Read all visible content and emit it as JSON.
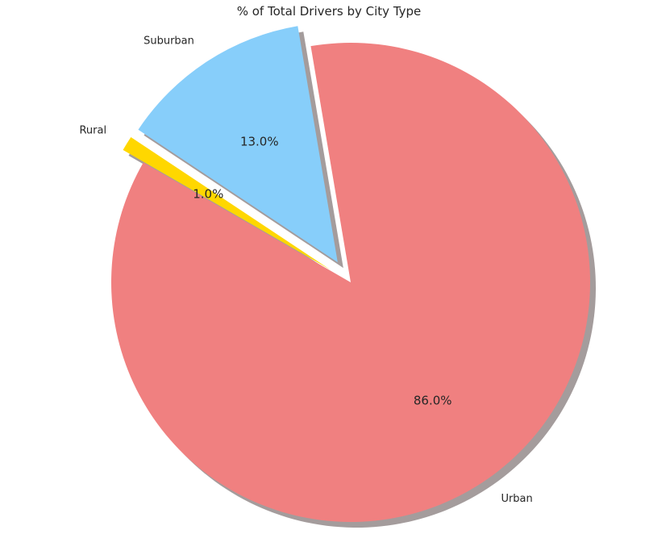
{
  "chart_data": {
    "type": "pie",
    "title": "% of Total Drivers by City Type",
    "slices": [
      {
        "label": "Urban",
        "value": 86.0,
        "pct_label": "86.0%",
        "color": "#F08080",
        "exploded": false
      },
      {
        "label": "Suburban",
        "value": 13.0,
        "pct_label": "13.0%",
        "color": "#87CEFA",
        "exploded": true
      },
      {
        "label": "Rural",
        "value": 1.0,
        "pct_label": "1.0%",
        "color": "#FFD700",
        "exploded": true
      }
    ],
    "start_angle_deg": 150,
    "shadow": true,
    "shadow_color": "#A49C9C"
  }
}
